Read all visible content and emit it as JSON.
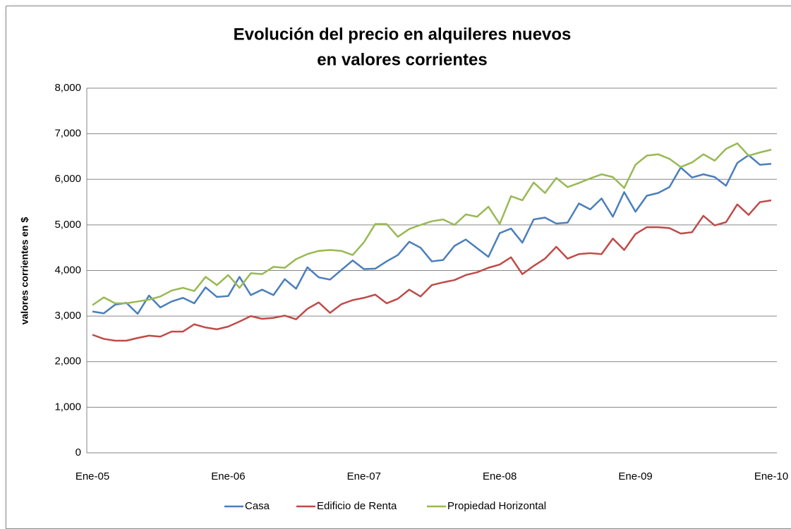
{
  "chart_data": {
    "type": "line",
    "title": [
      "Evolución del precio en alquileres nuevos",
      "en valores corrientes"
    ],
    "y_label": "valores corrientes en $",
    "categories": [
      "Ene-05",
      null,
      null,
      null,
      null,
      null,
      null,
      null,
      null,
      null,
      null,
      null,
      "Ene-06",
      null,
      null,
      null,
      null,
      null,
      null,
      null,
      null,
      null,
      null,
      null,
      "Ene-07",
      null,
      null,
      null,
      null,
      null,
      null,
      null,
      null,
      null,
      null,
      null,
      "Ene-08",
      null,
      null,
      null,
      null,
      null,
      null,
      null,
      null,
      null,
      null,
      null,
      "Ene-09",
      null,
      null,
      null,
      null,
      null,
      null,
      null,
      null,
      null,
      null,
      null,
      "Ene-10"
    ],
    "series": [
      {
        "name": "Casa",
        "color": "#4a7ebb",
        "values": [
          3100,
          3060,
          3250,
          3290,
          3050,
          3450,
          3190,
          3320,
          3400,
          3280,
          3630,
          3420,
          3440,
          3860,
          3460,
          3580,
          3460,
          3810,
          3600,
          4070,
          3850,
          3800,
          4010,
          4220,
          4030,
          4040,
          4200,
          4340,
          4630,
          4500,
          4200,
          4230,
          4540,
          4680,
          4490,
          4300,
          4820,
          4920,
          4610,
          5120,
          5160,
          5030,
          5050,
          5470,
          5340,
          5580,
          5180,
          5720,
          5290,
          5640,
          5700,
          5830,
          6260,
          6040,
          6110,
          6050,
          5860,
          6360,
          6530,
          6320,
          6340
        ]
      },
      {
        "name": "Edificio de Renta",
        "color": "#be4b48",
        "values": [
          2590,
          2500,
          2460,
          2460,
          2520,
          2570,
          2550,
          2660,
          2660,
          2820,
          2750,
          2710,
          2770,
          2880,
          3000,
          2940,
          2960,
          3010,
          2930,
          3160,
          3300,
          3070,
          3260,
          3350,
          3400,
          3470,
          3280,
          3380,
          3580,
          3430,
          3680,
          3740,
          3790,
          3900,
          3960,
          4060,
          4130,
          4290,
          3920,
          4100,
          4260,
          4520,
          4260,
          4360,
          4380,
          4360,
          4700,
          4450,
          4800,
          4950,
          4950,
          4930,
          4810,
          4840,
          5200,
          4990,
          5060,
          5450,
          5220,
          5500,
          5540
        ]
      },
      {
        "name": "Propiedad Horizontal",
        "color": "#98b954",
        "values": [
          3240,
          3410,
          3280,
          3280,
          3320,
          3360,
          3430,
          3560,
          3620,
          3550,
          3860,
          3680,
          3900,
          3620,
          3940,
          3920,
          4080,
          4060,
          4250,
          4360,
          4430,
          4450,
          4430,
          4340,
          4620,
          5020,
          5020,
          4740,
          4910,
          5000,
          5080,
          5120,
          5000,
          5230,
          5180,
          5400,
          5020,
          5630,
          5540,
          5930,
          5700,
          6030,
          5830,
          5920,
          6020,
          6110,
          6050,
          5810,
          6320,
          6520,
          6550,
          6450,
          6270,
          6370,
          6550,
          6410,
          6670,
          6790,
          6520,
          6590,
          6650
        ]
      }
    ],
    "ylim": [
      0,
      8000
    ],
    "yticks": [
      0,
      {
        "value": 1000,
        "label": "1,000"
      },
      {
        "value": 2000,
        "label": "2,000"
      },
      {
        "value": 3000,
        "label": "3,000"
      },
      {
        "value": 4000,
        "label": "4,000"
      },
      {
        "value": 5000,
        "label": "5,000"
      },
      {
        "value": 6000,
        "label": "6,000"
      },
      {
        "value": 7000,
        "label": "7,000"
      },
      {
        "value": 8000,
        "label": "8,000"
      }
    ],
    "grid": true,
    "legend": "bottom"
  }
}
